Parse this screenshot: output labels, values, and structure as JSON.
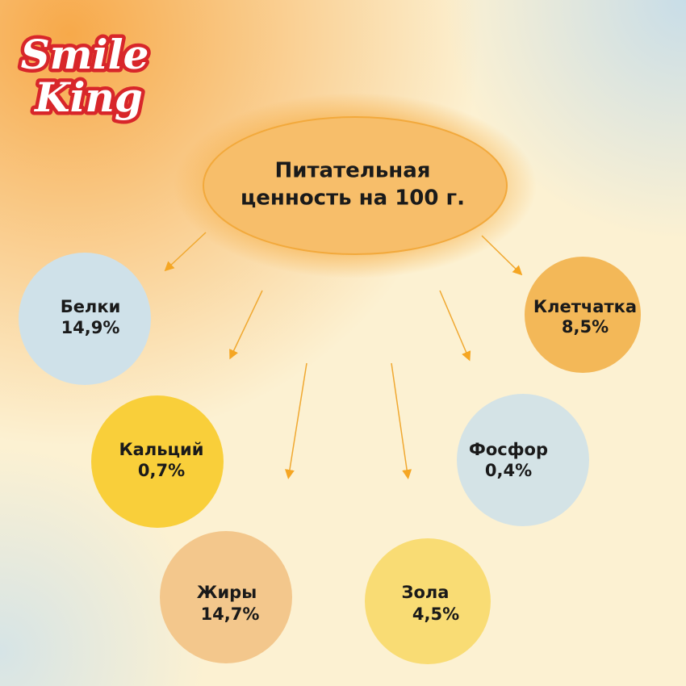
{
  "logo": {
    "line1": "Smile",
    "line2": "King"
  },
  "title": {
    "lines": [
      "Питательная",
      "ценность на 100 г."
    ]
  },
  "nodes": [
    {
      "label": "Белки",
      "value": "14,9%"
    },
    {
      "label": "Кальций",
      "value": "0,7%"
    },
    {
      "label": "Жиры",
      "value": "14,7%"
    },
    {
      "label": "Клетчатка",
      "value": "8,5%"
    },
    {
      "label": "Фосфор",
      "value": "0,4%"
    },
    {
      "label": "Зола",
      "value": "4,5%"
    }
  ]
}
